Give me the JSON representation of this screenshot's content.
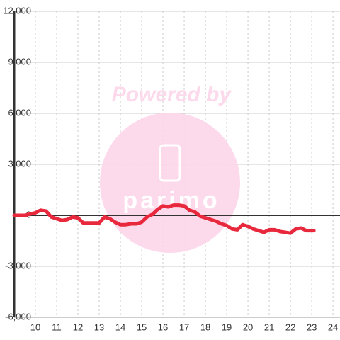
{
  "chart_data": {
    "type": "line",
    "watermark": {
      "title": "Powered by",
      "brand": "parimo"
    },
    "x": [
      9,
      9.5,
      10,
      10.25,
      10.5,
      10.75,
      11,
      11.25,
      11.5,
      11.75,
      12,
      12.25,
      12.5,
      12.75,
      13,
      13.25,
      13.5,
      13.75,
      14,
      14.25,
      14.5,
      14.75,
      15,
      15.25,
      15.5,
      15.75,
      16,
      16.25,
      16.5,
      16.75,
      17,
      17.25,
      17.5,
      17.75,
      18,
      18.25,
      18.5,
      18.75,
      19,
      19.25,
      19.5,
      19.75,
      20,
      20.25,
      20.5,
      20.75,
      21,
      21.25,
      21.5,
      21.75,
      22,
      22.25,
      22.5,
      22.75,
      23,
      23.1
    ],
    "series": [
      {
        "color": "#e8283c",
        "values": [
          0,
          0,
          150,
          300,
          250,
          -100,
          -200,
          -300,
          -250,
          -100,
          -150,
          -450,
          -450,
          -450,
          -450,
          -100,
          -200,
          -400,
          -550,
          -550,
          -500,
          -500,
          -400,
          -100,
          50,
          350,
          550,
          500,
          600,
          600,
          550,
          300,
          200,
          -50,
          -150,
          -250,
          -350,
          -500,
          -600,
          -800,
          -850,
          -550,
          -650,
          -800,
          -900,
          -1000,
          -850,
          -850,
          -950,
          -1000,
          -1050,
          -800,
          -750,
          -900,
          -900,
          -900
        ]
      }
    ],
    "xlim": [
      9,
      24.33
    ],
    "xticks": [
      10,
      11,
      12,
      13,
      14,
      15,
      16,
      17,
      18,
      19,
      20,
      21,
      22,
      23,
      24
    ],
    "ylim": [
      -6000,
      12000
    ],
    "yticks": [
      {
        "value": -6000,
        "label": "-6,000"
      },
      {
        "value": -3000,
        "label": "-3,000"
      },
      0,
      {
        "value": 3000,
        "label": "3,000"
      },
      {
        "value": 6000,
        "label": "6,000"
      },
      {
        "value": 9000,
        "label": "9,000"
      },
      {
        "value": 12000,
        "label": "12,000"
      }
    ],
    "grid": true
  }
}
